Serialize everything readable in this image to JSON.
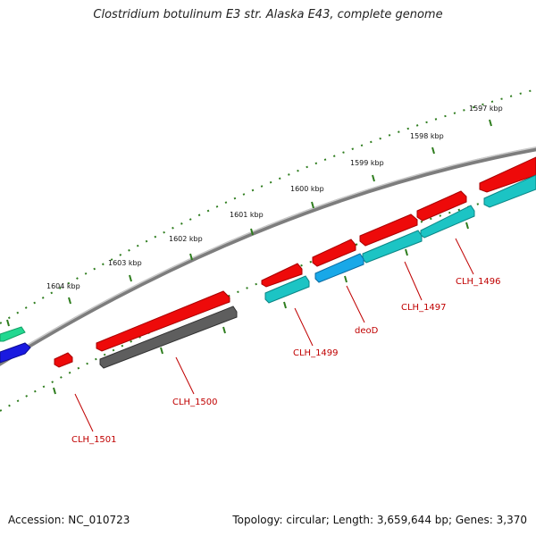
{
  "title": "Clostridium botulinum E3 str. Alaska E43, complete genome",
  "footer": {
    "accession": "Accession: NC_010723",
    "summary": "Topology: circular; Length: 3,659,644 bp; Genes: 3,370"
  },
  "colors": {
    "backbone": "#8a8a8a",
    "tick": "#2e7d1e",
    "gene_red": "#ee0a0a",
    "gene_teal": "#1cc4c4",
    "gene_gray": "#5e5e5e",
    "gene_blue_light": "#18a8e8",
    "gene_blue": "#1a1ae0",
    "gene_green": "#22d890",
    "label": "#c00000"
  },
  "scale_labels": [
    "1597 kbp",
    "1598 kbp",
    "1599 kbp",
    "1600 kbp",
    "1601 kbp",
    "1602 kbp",
    "1603 kbp",
    "1604 kbp"
  ],
  "gene_labels": [
    "CLH_1496",
    "CLH_1497",
    "deoD",
    "CLH_1499",
    "CLH_1500",
    "CLH_1501"
  ]
}
